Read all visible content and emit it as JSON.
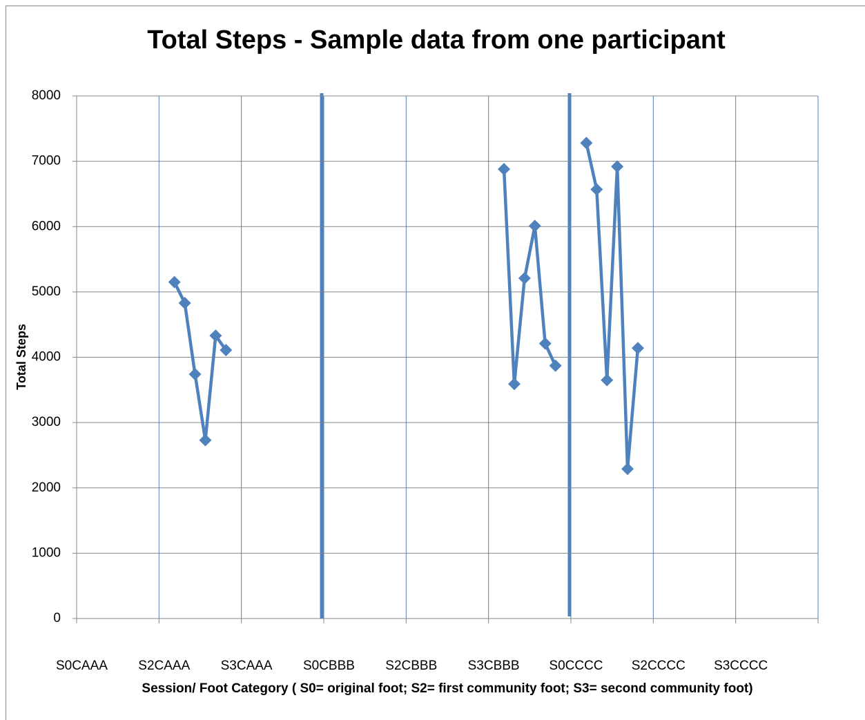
{
  "chart_data": {
    "type": "line",
    "title": "Total Steps - Sample data from one participant",
    "x_label": "Session/ Foot  Category ( S0= original foot; S2= first community foot; S3= second community foot)",
    "y_label": "Total Steps",
    "categories": [
      "S0CAAA",
      null,
      null,
      null,
      null,
      null,
      null,
      null,
      "S2CAAA",
      null,
      null,
      null,
      null,
      null,
      null,
      null,
      "S3CAAA",
      null,
      null,
      null,
      null,
      null,
      null,
      null,
      "S0CBBB",
      null,
      null,
      null,
      null,
      null,
      null,
      null,
      "S2CBBB",
      null,
      null,
      null,
      null,
      null,
      null,
      null,
      "S3CBBB",
      null,
      null,
      null,
      null,
      null,
      null,
      null,
      "S0CCCC",
      null,
      null,
      null,
      null,
      null,
      null,
      null,
      "S2CCCC",
      null,
      null,
      null,
      null,
      null,
      null,
      null,
      "S3CCCC",
      null,
      null,
      null,
      null,
      null,
      null,
      null
    ],
    "series": [
      {
        "color": "#4f81bd",
        "values": [
          null,
          null,
          null,
          null,
          null,
          null,
          null,
          null,
          null,
          5150,
          4830,
          3740,
          2730,
          4330,
          4110,
          null,
          null,
          null,
          null,
          null,
          null,
          null,
          null,
          null,
          null,
          null,
          null,
          null,
          null,
          null,
          null,
          null,
          null,
          null,
          null,
          null,
          null,
          null,
          null,
          null,
          null,
          6880,
          3590,
          5210,
          6010,
          4210,
          3870,
          null,
          null,
          7280,
          6570,
          3650,
          6920,
          2290,
          4140,
          null,
          null,
          null,
          null,
          null,
          null,
          null,
          null,
          null,
          null,
          null,
          null,
          null,
          null,
          null,
          null,
          null
        ]
      }
    ],
    "ylim": [
      0,
      8000
    ],
    "yticks": [
      0,
      1000,
      2000,
      3000,
      4000,
      5000,
      6000,
      7000,
      8000
    ],
    "grid": true
  }
}
